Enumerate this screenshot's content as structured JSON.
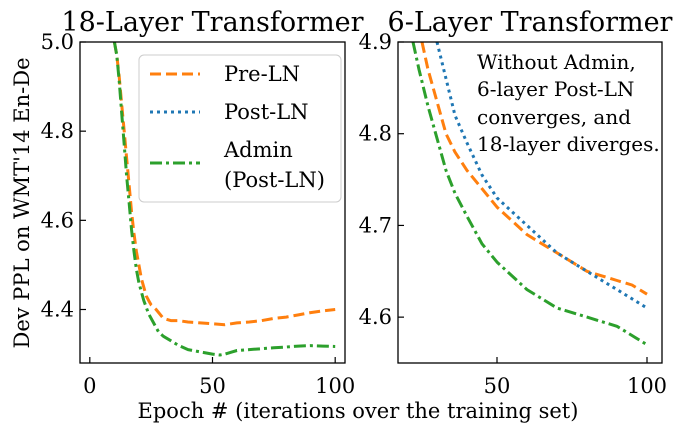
{
  "shared": {
    "xlabel": "Epoch # (iterations over the training set)",
    "ylabel": "Dev PPL on WMT'14 En-De"
  },
  "legend": {
    "placement": "upper-right of left panel",
    "items": [
      {
        "lines": [
          "Pre-LN"
        ],
        "color": "#ff7f0e",
        "dash": "dashed"
      },
      {
        "lines": [
          "Post-LN"
        ],
        "color": "#1f77b4",
        "dash": "dotted"
      },
      {
        "lines": [
          "Admin",
          "(Post-LN)"
        ],
        "color": "#2ca02c",
        "dash": "dashdot"
      }
    ]
  },
  "annotation": {
    "lines": [
      "Without Admin,",
      "6-layer Post-LN",
      "converges, and",
      "18-layer diverges."
    ]
  },
  "chart_data": [
    {
      "type": "line",
      "title": "18-Layer Transformer",
      "xlim": [
        -4,
        104
      ],
      "ylim": [
        4.28,
        5.0
      ],
      "xticks": [
        0,
        50,
        100
      ],
      "yticks": [
        4.4,
        4.6,
        4.8,
        5.0
      ],
      "ytick_labels": [
        "4.4",
        "4.6",
        "4.8",
        "5.0"
      ],
      "grid": false,
      "series": [
        {
          "name": "Pre-LN",
          "color": "#ff7f0e",
          "dash": "dashed",
          "x": [
            10,
            11,
            12,
            13,
            14,
            15,
            16,
            17,
            18,
            19,
            20,
            21,
            22,
            23,
            24,
            25,
            27,
            30,
            33,
            36,
            40,
            45,
            50,
            55,
            60,
            65,
            70,
            75,
            80,
            85,
            90,
            95,
            100
          ],
          "y": [
            5.0,
            4.97,
            4.92,
            4.86,
            4.8,
            4.74,
            4.68,
            4.62,
            4.57,
            4.53,
            4.5,
            4.47,
            4.45,
            4.43,
            4.42,
            4.41,
            4.4,
            4.38,
            4.375,
            4.375,
            4.372,
            4.37,
            4.368,
            4.366,
            4.37,
            4.372,
            4.375,
            4.38,
            4.383,
            4.388,
            4.393,
            4.397,
            4.4
          ]
        },
        {
          "name": "Admin (Post-LN)",
          "color": "#2ca02c",
          "dash": "dashdot",
          "x": [
            10,
            11,
            12,
            13,
            14,
            15,
            16,
            17,
            18,
            19,
            20,
            22,
            24,
            26,
            28,
            30,
            33,
            36,
            40,
            45,
            50,
            53,
            55,
            58,
            60,
            65,
            70,
            75,
            80,
            85,
            90,
            95,
            100
          ],
          "y": [
            5.0,
            4.97,
            4.91,
            4.84,
            4.77,
            4.7,
            4.64,
            4.58,
            4.53,
            4.49,
            4.46,
            4.42,
            4.39,
            4.37,
            4.35,
            4.34,
            4.33,
            4.32,
            4.31,
            4.305,
            4.3,
            4.298,
            4.3,
            4.305,
            4.308,
            4.31,
            4.312,
            4.314,
            4.316,
            4.318,
            4.319,
            4.318,
            4.317
          ]
        }
      ]
    },
    {
      "type": "line",
      "title": "6-Layer Transformer",
      "xlim": [
        17,
        105
      ],
      "ylim": [
        4.55,
        4.9
      ],
      "xticks": [
        50,
        100
      ],
      "yticks": [
        4.6,
        4.7,
        4.8,
        4.9
      ],
      "ytick_labels": [
        "4.6",
        "4.7",
        "4.8",
        "4.9"
      ],
      "grid": false,
      "series": [
        {
          "name": "Pre-LN",
          "color": "#ff7f0e",
          "dash": "dashed",
          "x": [
            25,
            27,
            30,
            33,
            36,
            40,
            45,
            50,
            55,
            60,
            65,
            70,
            75,
            80,
            85,
            90,
            95,
            100
          ],
          "y": [
            4.9,
            4.87,
            4.835,
            4.8,
            4.78,
            4.76,
            4.74,
            4.72,
            4.705,
            4.69,
            4.68,
            4.67,
            4.66,
            4.65,
            4.645,
            4.64,
            4.635,
            4.625
          ]
        },
        {
          "name": "Post-LN",
          "color": "#1f77b4",
          "dash": "dotted",
          "x": [
            30,
            33,
            36,
            40,
            45,
            50,
            55,
            60,
            65,
            70,
            75,
            80,
            85,
            90,
            95,
            100
          ],
          "y": [
            4.9,
            4.86,
            4.82,
            4.79,
            4.755,
            4.73,
            4.715,
            4.7,
            4.685,
            4.67,
            4.66,
            4.65,
            4.64,
            4.63,
            4.62,
            4.61
          ]
        },
        {
          "name": "Admin (Post-LN)",
          "color": "#2ca02c",
          "dash": "dashdot",
          "x": [
            22,
            24,
            27,
            30,
            33,
            36,
            40,
            45,
            50,
            55,
            60,
            65,
            70,
            75,
            80,
            85,
            90,
            95,
            100
          ],
          "y": [
            4.9,
            4.87,
            4.83,
            4.795,
            4.76,
            4.735,
            4.71,
            4.68,
            4.66,
            4.645,
            4.63,
            4.62,
            4.61,
            4.605,
            4.6,
            4.595,
            4.59,
            4.58,
            4.57
          ]
        }
      ]
    }
  ]
}
